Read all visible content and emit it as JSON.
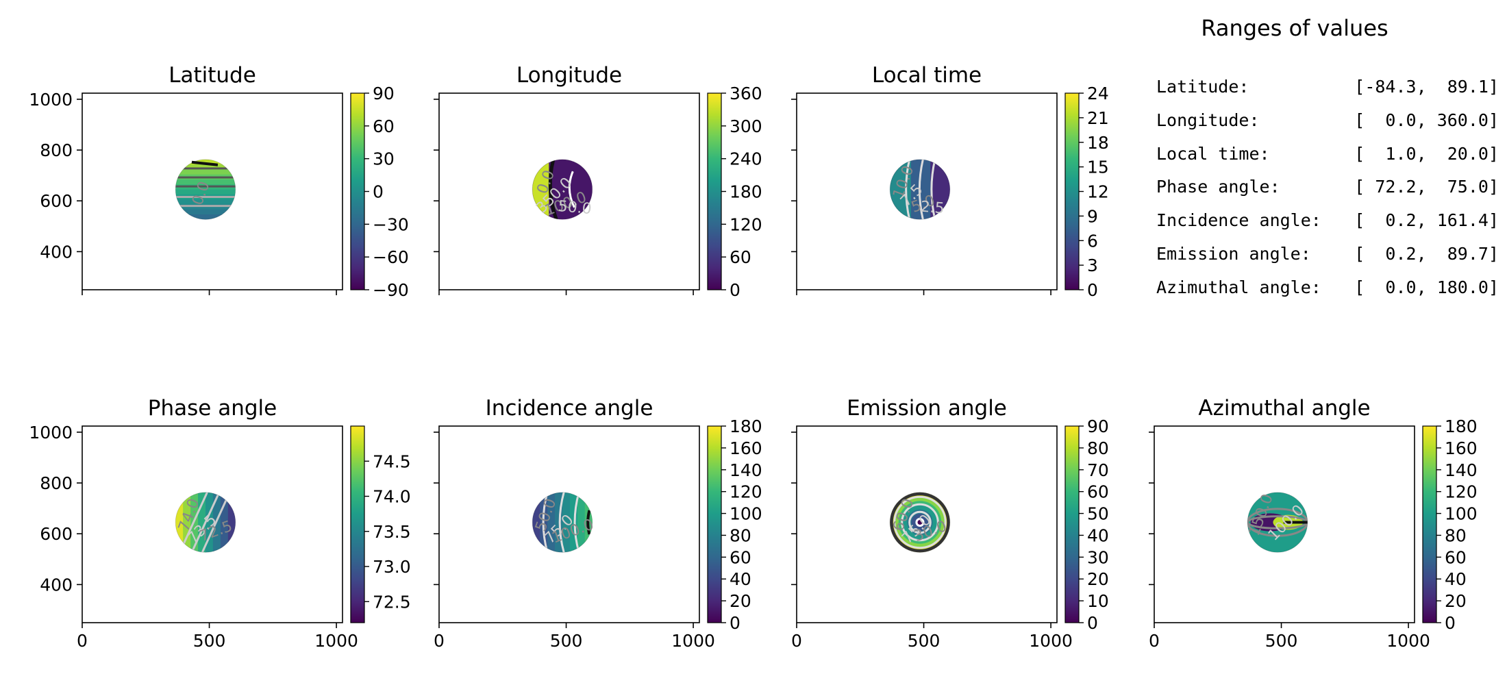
{
  "chart_data": [
    {
      "type": "heatmap",
      "title": "Latitude",
      "kind": "lat",
      "colorbar": {
        "ticks": [
          -90,
          -60,
          -30,
          0,
          30,
          60,
          90
        ],
        "labels": [
          "−90",
          "−60",
          "−30",
          "0",
          "30",
          "60",
          "90"
        ],
        "range": [
          -90,
          90
        ]
      },
      "contour_labels": [
        "0.0"
      ],
      "xlim": [
        0,
        1024
      ],
      "ylim": [
        250,
        1024
      ],
      "yticks": [
        400,
        600,
        800,
        1000
      ],
      "show_yticklabels": true,
      "show_xticklabels": false,
      "grid": false
    },
    {
      "type": "heatmap",
      "title": "Longitude",
      "kind": "lon",
      "colorbar": {
        "ticks": [
          0,
          60,
          120,
          180,
          240,
          300,
          360
        ],
        "labels": [
          "0",
          "60",
          "120",
          "180",
          "240",
          "300",
          "360"
        ],
        "range": [
          0,
          360
        ]
      },
      "contour_labels": [
        "0.0",
        "350.0",
        "100.0",
        "50.0"
      ],
      "xlim": [
        0,
        1024
      ],
      "ylim": [
        250,
        1024
      ],
      "yticks": [
        400,
        600,
        800,
        1000
      ],
      "show_yticklabels": false,
      "show_xticklabels": false,
      "grid": false
    },
    {
      "type": "heatmap",
      "title": "Local time",
      "kind": "lt",
      "colorbar": {
        "ticks": [
          0,
          3,
          6,
          9,
          12,
          15,
          18,
          21,
          24
        ],
        "labels": [
          "0",
          "3",
          "6",
          "9",
          "12",
          "15",
          "18",
          "21",
          "24"
        ],
        "range": [
          0,
          24
        ]
      },
      "contour_labels": [
        "10.0",
        "7.5",
        "5.0",
        "2.5"
      ],
      "xlim": [
        0,
        1024
      ],
      "ylim": [
        250,
        1024
      ],
      "yticks": [
        400,
        600,
        800,
        1000
      ],
      "show_yticklabels": false,
      "show_xticklabels": false,
      "grid": false
    },
    {
      "type": "heatmap",
      "title": "Phase angle",
      "kind": "phase",
      "colorbar": {
        "ticks": [
          72.5,
          73.0,
          73.5,
          74.0,
          74.5
        ],
        "labels": [
          "72.5",
          "73.0",
          "73.5",
          "74.0",
          "74.5"
        ],
        "range": [
          72.2,
          75.0
        ]
      },
      "contour_labels": [
        "74.0",
        "73.5",
        "72.5"
      ],
      "xlim": [
        0,
        1024
      ],
      "ylim": [
        250,
        1024
      ],
      "yticks": [
        400,
        600,
        800,
        1000
      ],
      "xticks": [
        0,
        500,
        1000
      ],
      "show_yticklabels": true,
      "show_xticklabels": true,
      "grid": false
    },
    {
      "type": "heatmap",
      "title": "Incidence angle",
      "kind": "inc",
      "colorbar": {
        "ticks": [
          0,
          20,
          40,
          60,
          80,
          100,
          120,
          140,
          160,
          180
        ],
        "labels": [
          "0",
          "20",
          "40",
          "60",
          "80",
          "100",
          "120",
          "140",
          "160",
          "180"
        ],
        "range": [
          0,
          180
        ]
      },
      "contour_labels": [
        "50.0",
        "75.0",
        "100.0"
      ],
      "xlim": [
        0,
        1024
      ],
      "ylim": [
        250,
        1024
      ],
      "yticks": [
        400,
        600,
        800,
        1000
      ],
      "xticks": [
        0,
        500,
        1000
      ],
      "show_yticklabels": false,
      "show_xticklabels": true,
      "grid": false
    },
    {
      "type": "heatmap",
      "title": "Emission angle",
      "kind": "emi",
      "colorbar": {
        "ticks": [
          0,
          10,
          20,
          30,
          40,
          50,
          60,
          70,
          80,
          90
        ],
        "labels": [
          "0",
          "10",
          "20",
          "30",
          "40",
          "50",
          "60",
          "70",
          "80",
          "90"
        ],
        "range": [
          0,
          90
        ]
      },
      "contour_labels": [
        "60.0",
        "75.0",
        "30.0"
      ],
      "xlim": [
        0,
        1024
      ],
      "ylim": [
        250,
        1024
      ],
      "yticks": [
        400,
        600,
        800,
        1000
      ],
      "xticks": [
        0,
        500,
        1000
      ],
      "show_yticklabels": false,
      "show_xticklabels": true,
      "grid": false
    },
    {
      "type": "heatmap",
      "title": "Azimuthal angle",
      "kind": "azi",
      "colorbar": {
        "ticks": [
          0,
          20,
          40,
          60,
          80,
          100,
          120,
          140,
          160,
          180
        ],
        "labels": [
          "0",
          "20",
          "40",
          "60",
          "80",
          "100",
          "120",
          "140",
          "160",
          "180"
        ],
        "range": [
          0,
          180
        ]
      },
      "contour_labels": [
        "150.0",
        "100.0"
      ],
      "xlim": [
        0,
        1024
      ],
      "ylim": [
        250,
        1024
      ],
      "yticks": [
        400,
        600,
        800,
        1000
      ],
      "xticks": [
        0,
        500,
        1000
      ],
      "show_yticklabels": false,
      "show_xticklabels": true,
      "grid": false
    }
  ],
  "disk": {
    "center_x": 485,
    "center_y": 645,
    "radius": 118
  },
  "colormap": [
    "#440154",
    "#482878",
    "#3e4989",
    "#31688e",
    "#26828e",
    "#1f9e89",
    "#35b779",
    "#6ece58",
    "#b5de2b",
    "#fde725"
  ],
  "ranges_panel": {
    "title": "Ranges of values",
    "rows": [
      {
        "label": "Latitude:",
        "value": "[-84.3,  89.1]"
      },
      {
        "label": "Longitude:",
        "value": "[  0.0, 360.0]"
      },
      {
        "label": "Local time:",
        "value": "[  1.0,  20.0]"
      },
      {
        "label": "Phase angle:",
        "value": "[ 72.2,  75.0]"
      },
      {
        "label": "Incidence angle:",
        "value": "[  0.2, 161.4]"
      },
      {
        "label": "Emission angle:",
        "value": "[  0.2,  89.7]"
      },
      {
        "label": "Azimuthal angle:",
        "value": "[  0.0, 180.0]"
      }
    ]
  }
}
